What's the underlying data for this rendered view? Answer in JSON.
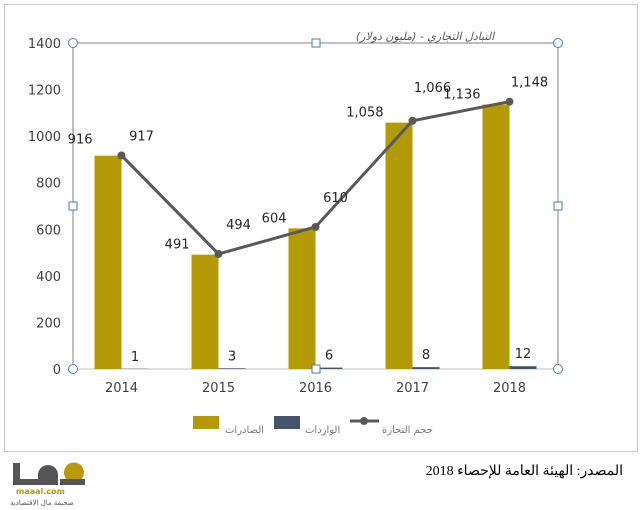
{
  "chart_data": {
    "type": "bar+line",
    "title": "التبادل التجاري - (مليون دولار)",
    "categories": [
      "2014",
      "2015",
      "2016",
      "2017",
      "2018"
    ],
    "series": [
      {
        "name": "الصادرات",
        "type": "bar",
        "color": "#b59a07",
        "values": [
          916,
          491,
          604,
          1058,
          1136
        ],
        "labels": [
          "916",
          "491",
          "604",
          "1,058",
          "1,136"
        ]
      },
      {
        "name": "الواردات",
        "type": "bar",
        "color": "#44546a",
        "values": [
          1,
          3,
          6,
          8,
          12
        ],
        "labels": [
          "1",
          "3",
          "6",
          "8",
          "12"
        ]
      },
      {
        "name": "حجم التجارة",
        "type": "line",
        "color": "#595959",
        "values": [
          917,
          494,
          610,
          1066,
          1148
        ],
        "labels": [
          "917",
          "494",
          "610",
          "1,066",
          "1,148"
        ]
      }
    ],
    "ylim": [
      0,
      1400
    ],
    "yticks": [
      "0",
      "200",
      "400",
      "600",
      "800",
      "1000",
      "1200",
      "1400"
    ],
    "legend": "bottom"
  },
  "source": "المصدر: الهيئة العامة للإحصاء 2018",
  "logo": {
    "url": "maaal.com",
    "subtitle": "صحيفة مال الاقتصادية"
  }
}
